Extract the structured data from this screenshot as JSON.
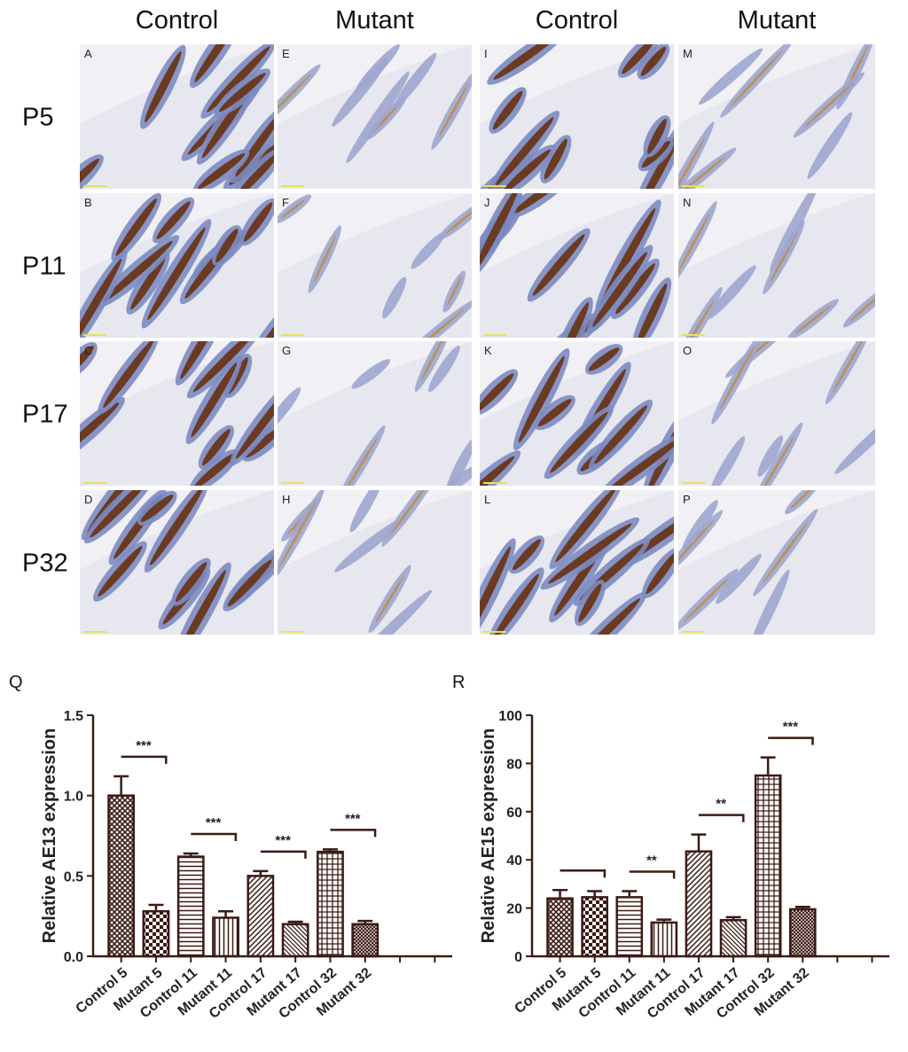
{
  "panels": {
    "columns": [
      "Control",
      "Mutant",
      "Control",
      "Mutant"
    ],
    "rows": [
      "P5",
      "P11",
      "P17",
      "P32"
    ],
    "letters": [
      [
        "A",
        "E",
        "I",
        "M"
      ],
      [
        "B",
        "F",
        "J",
        "N"
      ],
      [
        "C",
        "G",
        "K",
        "O"
      ],
      [
        "D",
        "H",
        "L",
        "P"
      ]
    ]
  },
  "chart_data": [
    {
      "type": "bar",
      "label": "Q",
      "ylabel": "Relative AE13 expression",
      "color": "#3b1a14",
      "categories": [
        "Control 5",
        "Mutant 5",
        "Control 11",
        "Mutant 11",
        "Control 17",
        "Mutant 17",
        "Control 32",
        "Mutant 32",
        null,
        null
      ],
      "values": [
        1.0,
        0.28,
        0.62,
        0.24,
        0.5,
        0.2,
        0.65,
        0.2,
        null,
        null
      ],
      "errors": [
        0.12,
        0.04,
        0.02,
        0.04,
        0.03,
        0.015,
        0.015,
        0.02,
        null,
        null
      ],
      "significance": [
        "***",
        "***",
        "***",
        "***"
      ],
      "ylim": [
        0,
        1.5
      ],
      "yticks": [
        {
          "value": 0,
          "label": "0.0"
        },
        0.5,
        {
          "value": 1,
          "label": "1.0"
        },
        1.5
      ]
    },
    {
      "type": "bar",
      "label": "R",
      "ylabel": "Relative AE15 expression",
      "color": "#3b1a14",
      "categories": [
        "Control 5",
        "Mutant 5",
        "Control 11",
        "Mutant 11",
        "Control 17",
        "Mutant 17",
        "Control 32",
        "Mutant 32",
        null,
        null
      ],
      "values": [
        24,
        24.5,
        24.5,
        14,
        43.5,
        15,
        75,
        19.5,
        null,
        null
      ],
      "errors": [
        3.5,
        2.5,
        2.5,
        1.2,
        7,
        1.2,
        7.5,
        1,
        null,
        null
      ],
      "significance": [
        null,
        "**",
        "**",
        "***"
      ],
      "ylim": [
        0,
        100
      ],
      "yticks": [
        0,
        20,
        40,
        60,
        80,
        100
      ]
    }
  ]
}
